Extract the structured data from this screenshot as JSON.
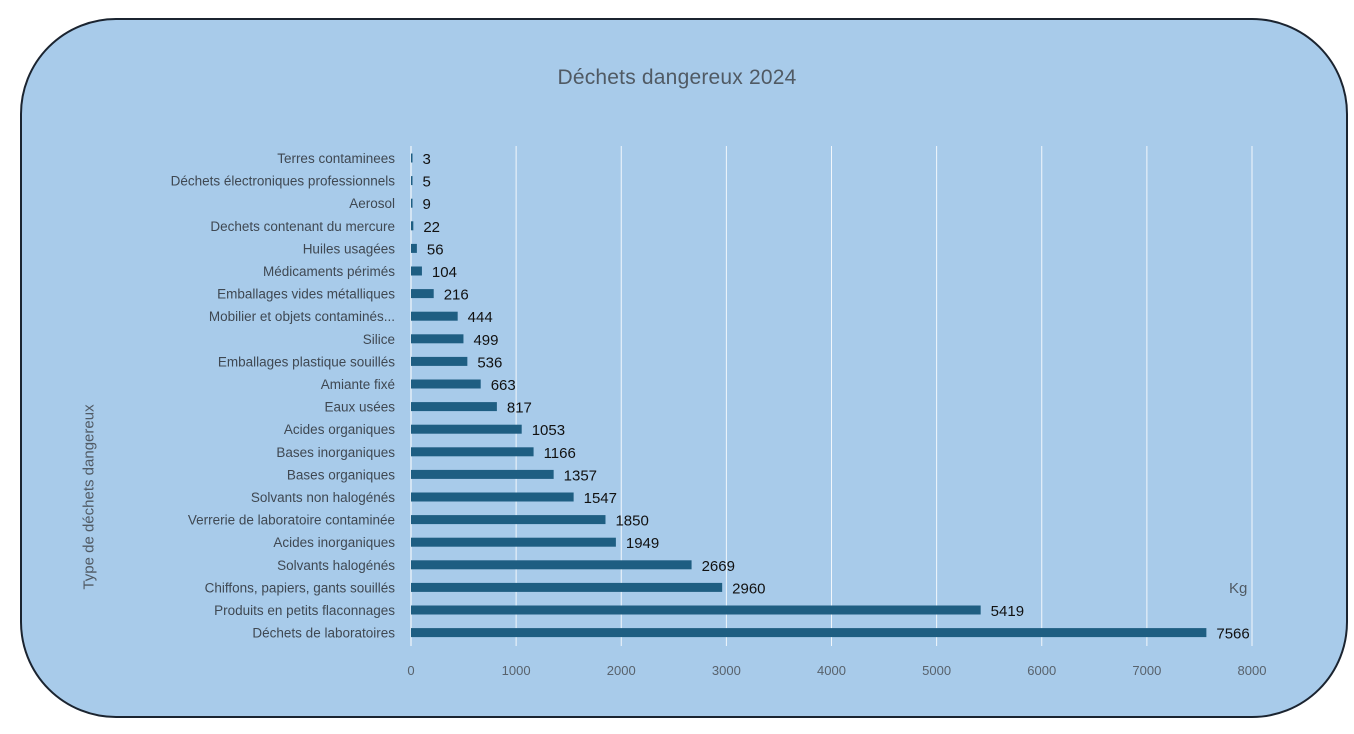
{
  "chart_data": {
    "type": "bar",
    "orientation": "horizontal",
    "title": "Déchets dangereux 2024",
    "xlabel": "Kg",
    "ylabel": "Type de déchets dangereux",
    "xlim": [
      0,
      8000
    ],
    "xticks": [
      0,
      1000,
      2000,
      3000,
      4000,
      5000,
      6000,
      7000,
      8000
    ],
    "grid": true,
    "legend": "none",
    "bar_color": "#1e5e82",
    "categories": [
      "Terres contaminees",
      "Déchets électroniques professionnels",
      "Aerosol",
      "Dechets contenant du mercure",
      "Huiles usagées",
      "Médicaments périmés",
      "Emballages vides métalliques",
      "Mobilier et objets contaminés...",
      "Silice",
      "Emballages plastique souillés",
      "Amiante fixé",
      "Eaux usées",
      "Acides organiques",
      "Bases inorganiques",
      "Bases organiques",
      "Solvants non halogénés",
      "Verrerie de  laboratoire contaminée",
      "Acides inorganiques",
      "Solvants halogénés",
      "Chiffons, papiers, gants souillés",
      "Produits en petits flaconnages",
      "Déchets de laboratoires"
    ],
    "values": [
      3,
      5,
      9,
      22,
      56,
      104,
      216,
      444,
      499,
      536,
      663,
      817,
      1053,
      1166,
      1357,
      1547,
      1850,
      1949,
      2669,
      2960,
      5419,
      7566
    ]
  }
}
